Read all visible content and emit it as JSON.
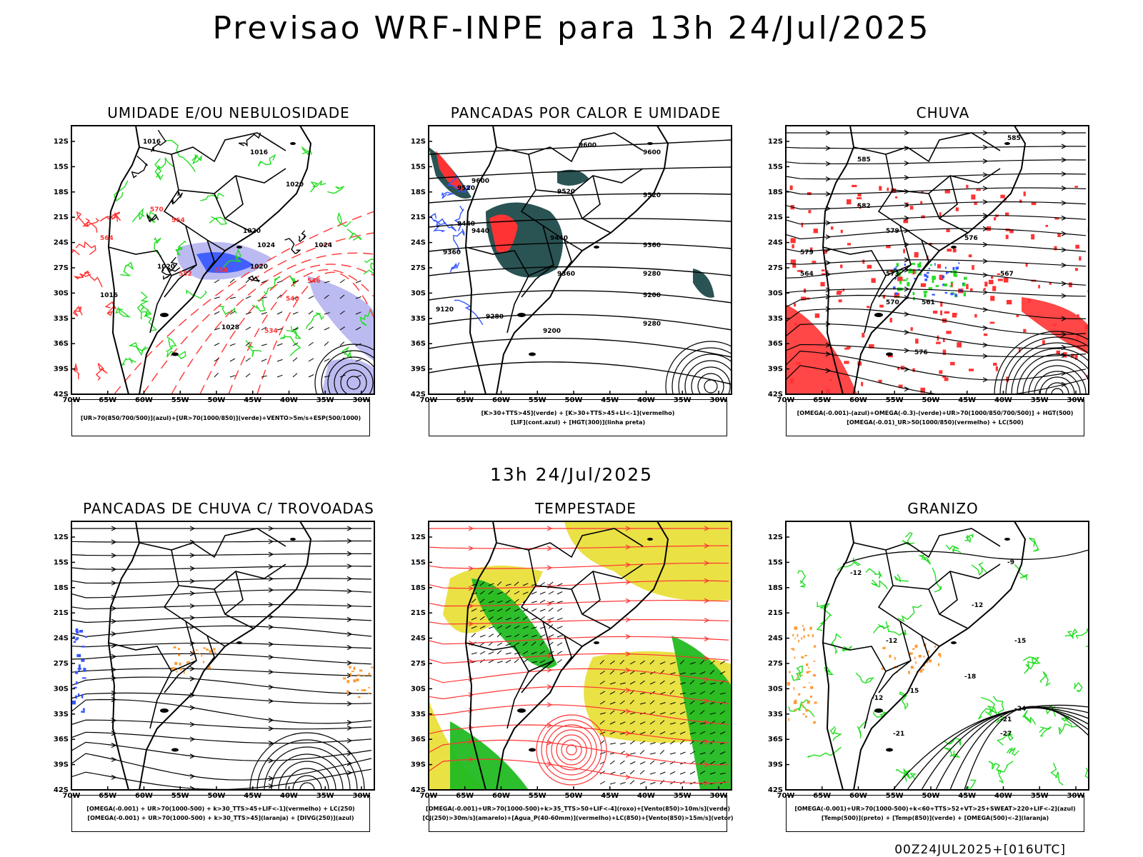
{
  "header": {
    "title": "Previsao WRF-INPE  para 13h 24/Jul/2025",
    "mid_title": "13h 24/Jul/2025",
    "footer": "00Z24JUL2025+[016UTC]"
  },
  "axes": {
    "lat_labels": [
      "12S",
      "15S",
      "18S",
      "21S",
      "24S",
      "27S",
      "30S",
      "33S",
      "36S",
      "39S",
      "42S"
    ],
    "lon_labels": [
      "70W",
      "65W",
      "60W",
      "55W",
      "50W",
      "45W",
      "40W",
      "35W",
      "30W"
    ]
  },
  "colors": {
    "green": "#22dd22",
    "red": "#ff3333",
    "blue": "#3355ff",
    "lavender": "#aaaaee",
    "darkteal": "#1f4a4a",
    "yellow": "#e8de30",
    "orange": "#ff9933"
  },
  "panels": [
    {
      "id": "umidade",
      "title": "UMIDADE E/OU NEBULOSIDADE",
      "legend": [
        "[UR>70(850/700/500)](azul)+[UR>70(1000/850)](verde)+VENTO>5m/s+ESP(500/1000)"
      ],
      "labels": [
        "1016",
        "1016",
        "1020",
        "1020",
        "1024",
        "1020",
        "1016",
        "1020",
        "1024",
        "1028",
        "570",
        "564",
        "558",
        "552",
        "546",
        "540",
        "534",
        "564"
      ]
    },
    {
      "id": "pancadas-calor",
      "title": "PANCADAS POR CALOR E UMIDADE",
      "legend": [
        "[K>30+TTS>45](verde) + [K>30+TTS>45+LI<-1](vermelho)",
        "[LIF](cont.azul) + [HGT(300)](linha preta)"
      ],
      "labels": [
        "9600",
        "9600",
        "9520",
        "9520",
        "9440",
        "9440",
        "9360",
        "9360",
        "9280",
        "9280",
        "9200",
        "9120",
        "9520",
        "9600",
        "9440",
        "9360",
        "9280",
        "9200"
      ]
    },
    {
      "id": "chuva",
      "title": "CHUVA",
      "legend": [
        "[OMEGA(-0.001)-(azul)+OMEGA(-0.3)-(verde)+UR>70(1000/850/700/500)] + HGT(500)",
        "[OMEGA(-0.01)_UR>50(1000/850)(vermelho) + LC(500)"
      ],
      "labels": [
        "585",
        "585",
        "582",
        "579",
        "576",
        "573",
        "570",
        "567",
        "564",
        "561",
        "576",
        "579"
      ]
    },
    {
      "id": "trovoadas",
      "title": "PANCADAS DE CHUVA C/ TROVOADAS",
      "legend": [
        "[OMEGA(-0.001) + UR>70(1000-500) + k>30_TTS>45+LIF<-1](vermelho) + LC(250)",
        "[OMEGA(-0.001) + UR>70(1000-500) + k>30_TTS>45](laranja) + [DIVG(250)](azul)"
      ],
      "labels": []
    },
    {
      "id": "tempestade",
      "title": "TEMPESTADE",
      "legend": [
        "[OMEGA(-0.001)+UR>70(1000-500)+k>35_TTS>50+LIF<-4](roxo)+[Vento(850)>10m/s](verde)",
        "[CJ(250)>30m/s](amarelo)+[Agua_P(40-60mm)](vermelho)+LC(850)+[Vento(850)>15m/s](vetor)"
      ],
      "labels": []
    },
    {
      "id": "granizo",
      "title": "GRANIZO",
      "legend": [
        "[OMEGA(-0.001)+UR>70(1000-500)+k<60+TTS>52+VT>25+SWEAT>220+LIF<-2](azul)",
        "[Temp(500)](preto) + [Temp(850)](verde) + [OMEGA(500)<-2](laranja)"
      ],
      "labels": [
        "-9",
        "-12",
        "-12",
        "-12",
        "-15",
        "-18",
        "-21",
        "-24",
        "-27",
        "-21",
        "-15",
        "-12"
      ]
    }
  ]
}
